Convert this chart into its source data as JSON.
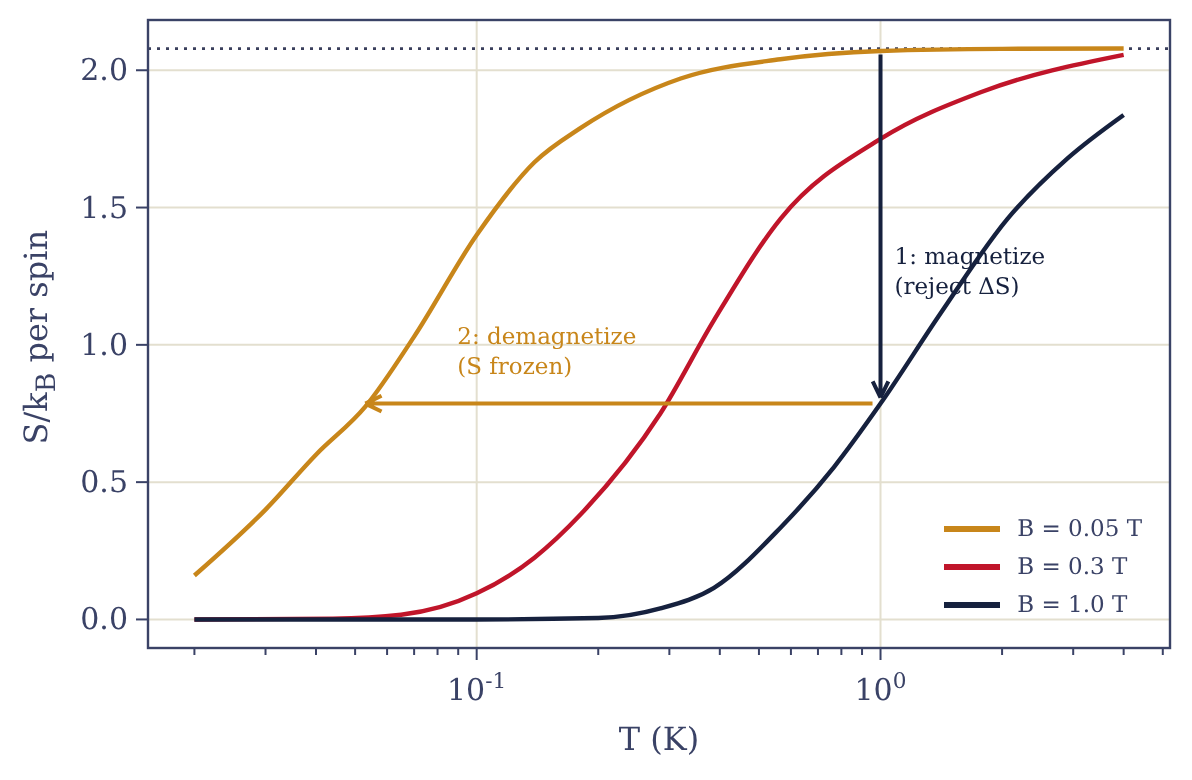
{
  "chart_data": {
    "type": "line",
    "xlabel": "T  (K)",
    "ylabel": "S/k$_{B}$ per spin",
    "log": "x",
    "grid": true,
    "legend": "bottom right",
    "marker": "none",
    "line_style": "solid",
    "xlim": [
      0.01535,
      5.21
    ],
    "ylim": [
      -0.104,
      2.183
    ],
    "xticks": [
      {
        "value": 0.02,
        "label": null
      },
      {
        "value": 0.03,
        "label": null
      },
      {
        "value": 0.04,
        "label": null
      },
      {
        "value": 0.05,
        "label": null
      },
      {
        "value": 0.06,
        "label": null
      },
      {
        "value": 0.07,
        "label": null
      },
      {
        "value": 0.08,
        "label": null
      },
      {
        "value": 0.09,
        "label": null
      },
      {
        "value": 0.1,
        "label": "10$^{-1}$"
      },
      {
        "value": 0.2,
        "label": null
      },
      {
        "value": 0.3,
        "label": null
      },
      {
        "value": 0.4,
        "label": null
      },
      {
        "value": 0.5,
        "label": null
      },
      {
        "value": 0.6,
        "label": null
      },
      {
        "value": 0.7,
        "label": null
      },
      {
        "value": 0.8,
        "label": null
      },
      {
        "value": 0.9,
        "label": null
      },
      {
        "value": 1,
        "label": "10$^{0}$"
      },
      {
        "value": 2,
        "label": null
      },
      {
        "value": 3,
        "label": null
      },
      {
        "value": 4,
        "label": null
      },
      {
        "value": 5,
        "label": null
      }
    ],
    "yticks": [
      {
        "value": 0,
        "label": "0.0"
      },
      {
        "value": 0.5,
        "label": "0.5"
      },
      {
        "value": 1,
        "label": "1.0"
      },
      {
        "value": 1.5,
        "label": "1.5"
      },
      {
        "value": 2,
        "label": "2.0"
      }
    ],
    "series": [
      {
        "name": "B = 0.05 T",
        "color": "#c8861a",
        "x": [
          0.02,
          0.03,
          0.04,
          0.053,
          0.07,
          0.1,
          0.139,
          0.181,
          0.32,
          0.565,
          1,
          2,
          4
        ],
        "values": [
          0.16,
          0.4,
          0.6,
          0.775,
          1.03,
          1.4,
          1.665,
          1.79,
          1.97,
          2.04,
          2.07,
          2.078,
          2.079
        ]
      },
      {
        "name": "B = 0.3 T",
        "color": "#c0152a",
        "x": [
          0.02,
          0.044,
          0.065,
          0.1,
          0.139,
          0.181,
          0.285,
          0.387,
          0.566,
          1,
          1.77,
          4
        ],
        "values": [
          0,
          0.003,
          0.017,
          0.095,
          0.225,
          0.383,
          0.75,
          1.09,
          1.46,
          1.75,
          1.92,
          2.056
        ]
      },
      {
        "name": "B = 1.0 T",
        "color": "#16213e",
        "x": [
          0.02,
          0.1,
          0.2,
          0.285,
          0.387,
          0.566,
          0.767,
          1,
          1.41,
          2.06,
          2.9,
          4
        ],
        "values": [
          0,
          0,
          0.005,
          0.04,
          0.115,
          0.335,
          0.555,
          0.786,
          1.116,
          1.458,
          1.678,
          1.837
        ]
      }
    ],
    "ref_lines": [
      {
        "axis": "y",
        "value": 2.079,
        "line_style": "dotted",
        "color": "#3a3f5c"
      }
    ],
    "annotations": [
      "1: magnetize\n(reject ΔS)",
      "2: demagnetize\n(S frozen)"
    ]
  }
}
